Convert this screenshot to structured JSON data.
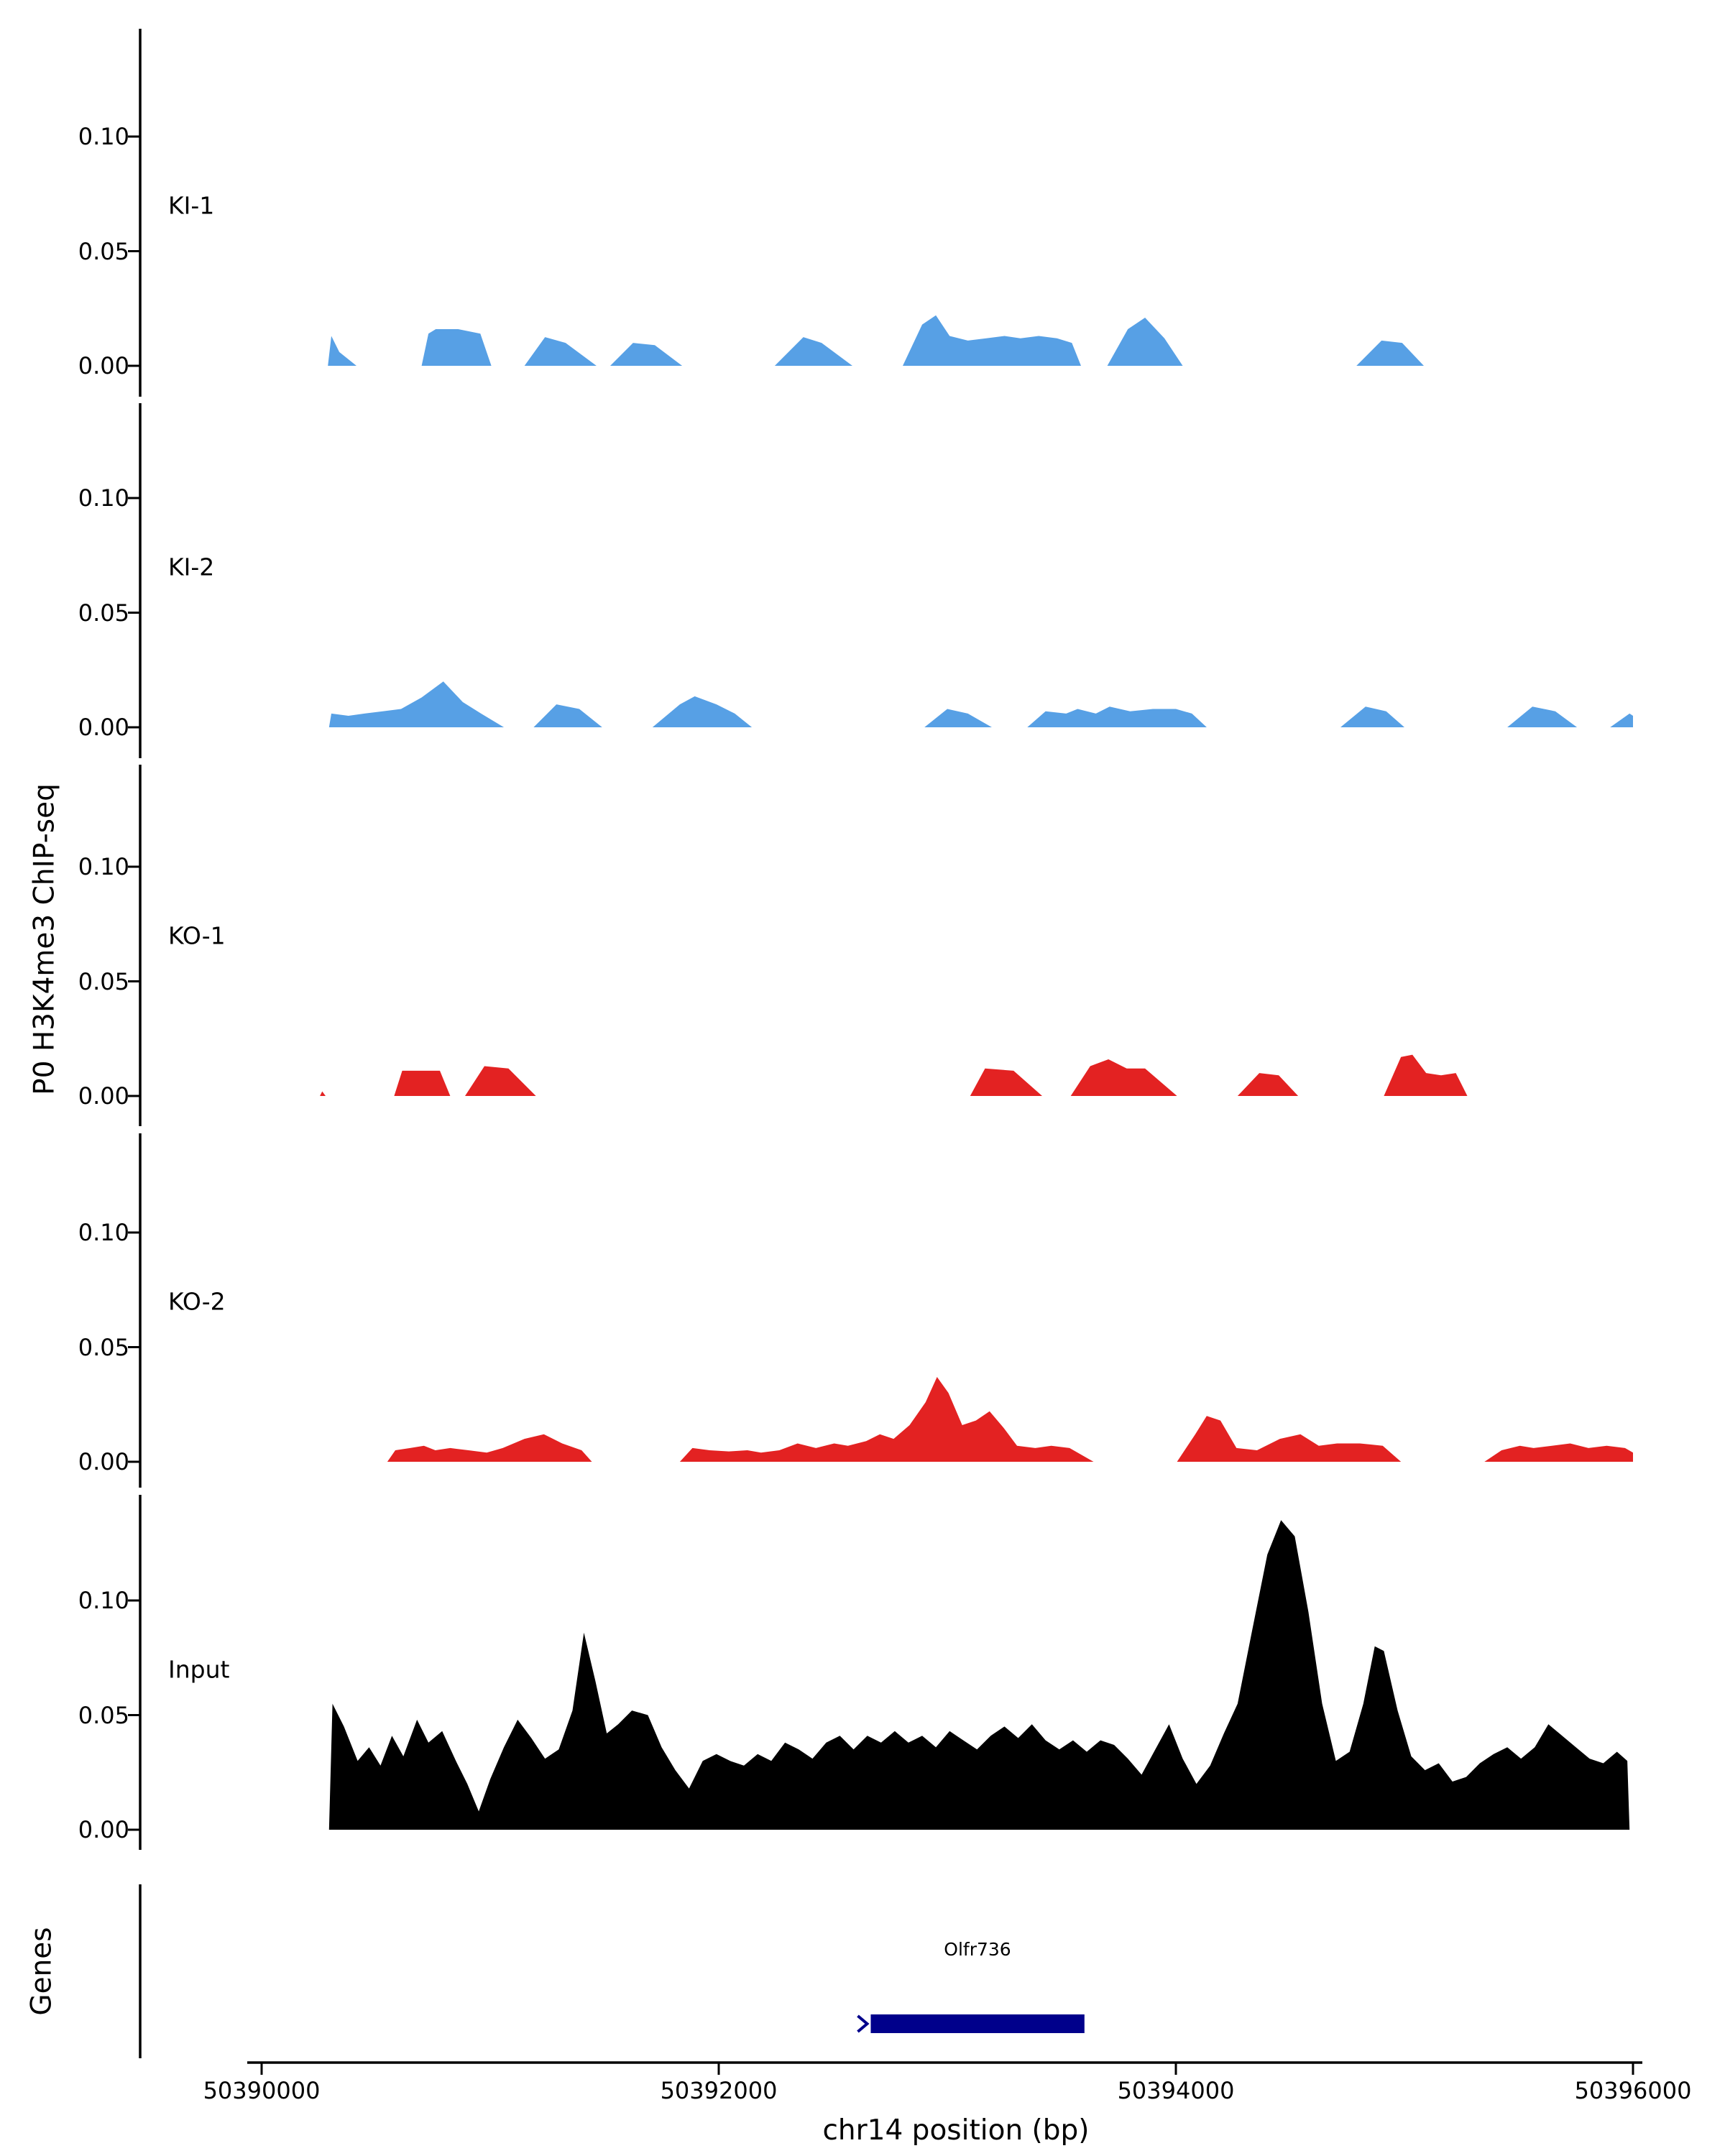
{
  "chart_data": {
    "type": "area",
    "title": "",
    "x_axis": {
      "label": "chr14 position (bp)",
      "range": [
        50390000,
        50396000
      ],
      "ticks": [
        50390000,
        50392000,
        50394000,
        50396000
      ],
      "tick_labels": [
        "50390000",
        "50392000",
        "50394000",
        "50396000"
      ]
    },
    "y_axis": {
      "label": "P0 H3K4me3 ChIP-seq",
      "range": [
        0,
        0.15
      ],
      "tick_values": [
        0,
        0.05,
        0.1
      ],
      "tick_labels": [
        "0.00",
        "0.05",
        "0.10"
      ]
    },
    "colors": {
      "ki": "#57A0E5",
      "ko": "#E32222",
      "input": "#000000",
      "gene": "#00008B",
      "axis": "#000000"
    },
    "tracks": [
      {
        "name": "KI-1",
        "color": "#57A0E5",
        "points": [
          [
            50390290,
            0
          ],
          [
            50390305,
            0.013
          ],
          [
            50390340,
            0.006
          ],
          [
            50390415,
            0
          ],
          [
            50390700,
            0
          ],
          [
            50390730,
            0.014
          ],
          [
            50390762,
            0.016
          ],
          [
            50390860,
            0.016
          ],
          [
            50390957,
            0.014
          ],
          [
            50391005,
            0
          ],
          [
            50391150,
            0
          ],
          [
            50391240,
            0.0125
          ],
          [
            50391330,
            0.01
          ],
          [
            50391465,
            0
          ],
          [
            50391525,
            0
          ],
          [
            50391625,
            0.01
          ],
          [
            50391720,
            0.009
          ],
          [
            50391840,
            0
          ],
          [
            50392245,
            0
          ],
          [
            50392370,
            0.0125
          ],
          [
            50392450,
            0.01
          ],
          [
            50392585,
            0
          ],
          [
            50392805,
            0
          ],
          [
            50392890,
            0.018
          ],
          [
            50392950,
            0.022
          ],
          [
            50393010,
            0.013
          ],
          [
            50393090,
            0.011
          ],
          [
            50393170,
            0.012
          ],
          [
            50393250,
            0.013
          ],
          [
            50393320,
            0.012
          ],
          [
            50393400,
            0.013
          ],
          [
            50393480,
            0.012
          ],
          [
            50393545,
            0.01
          ],
          [
            50393585,
            0
          ],
          [
            50393700,
            0
          ],
          [
            50393790,
            0.016
          ],
          [
            50393865,
            0.021
          ],
          [
            50393950,
            0.012
          ],
          [
            50394030,
            0
          ],
          [
            50394790,
            0
          ],
          [
            50394900,
            0.011
          ],
          [
            50394990,
            0.01
          ],
          [
            50395085,
            0
          ]
        ]
      },
      {
        "name": "KI-2",
        "color": "#57A0E5",
        "points": [
          [
            50390295,
            0
          ],
          [
            50390305,
            0.006
          ],
          [
            50390380,
            0.005
          ],
          [
            50390450,
            0.006
          ],
          [
            50390530,
            0.007
          ],
          [
            50390610,
            0.008
          ],
          [
            50390700,
            0.013
          ],
          [
            50390795,
            0.02
          ],
          [
            50390880,
            0.011
          ],
          [
            50390960,
            0.006
          ],
          [
            50391060,
            0
          ],
          [
            50391190,
            0
          ],
          [
            50391290,
            0.01
          ],
          [
            50391390,
            0.008
          ],
          [
            50391490,
            0
          ],
          [
            50391710,
            0
          ],
          [
            50391830,
            0.01
          ],
          [
            50391895,
            0.0135
          ],
          [
            50391990,
            0.01
          ],
          [
            50392070,
            0.006
          ],
          [
            50392145,
            0
          ],
          [
            50392900,
            0
          ],
          [
            50393000,
            0.008
          ],
          [
            50393090,
            0.006
          ],
          [
            50393195,
            0
          ],
          [
            50393350,
            0
          ],
          [
            50393430,
            0.007
          ],
          [
            50393520,
            0.006
          ],
          [
            50393570,
            0.008
          ],
          [
            50393650,
            0.006
          ],
          [
            50393710,
            0.009
          ],
          [
            50393800,
            0.007
          ],
          [
            50393900,
            0.008
          ],
          [
            50394000,
            0.008
          ],
          [
            50394070,
            0.006
          ],
          [
            50394135,
            0
          ],
          [
            50394720,
            0
          ],
          [
            50394830,
            0.009
          ],
          [
            50394920,
            0.007
          ],
          [
            50395000,
            0
          ],
          [
            50395450,
            0
          ],
          [
            50395560,
            0.009
          ],
          [
            50395660,
            0.007
          ],
          [
            50395755,
            0
          ],
          [
            50395900,
            0
          ],
          [
            50395985,
            0.006
          ],
          [
            50396000,
            0.005
          ]
        ]
      },
      {
        "name": "KO-1",
        "color": "#E32222",
        "points": [
          [
            50390255,
            0
          ],
          [
            50390265,
            0.002
          ],
          [
            50390280,
            0
          ],
          [
            50390580,
            0
          ],
          [
            50390615,
            0.011
          ],
          [
            50390780,
            0.011
          ],
          [
            50390825,
            0
          ],
          [
            50390890,
            0
          ],
          [
            50390975,
            0.013
          ],
          [
            50391080,
            0.012
          ],
          [
            50391200,
            0
          ],
          [
            50393100,
            0
          ],
          [
            50393165,
            0.012
          ],
          [
            50393290,
            0.011
          ],
          [
            50393415,
            0
          ],
          [
            50393540,
            0
          ],
          [
            50393625,
            0.013
          ],
          [
            50393705,
            0.016
          ],
          [
            50393785,
            0.012
          ],
          [
            50393865,
            0.012
          ],
          [
            50394005,
            0
          ],
          [
            50394270,
            0
          ],
          [
            50394365,
            0.01
          ],
          [
            50394450,
            0.009
          ],
          [
            50394535,
            0
          ],
          [
            50394910,
            0
          ],
          [
            50394985,
            0.017
          ],
          [
            50395035,
            0.018
          ],
          [
            50395095,
            0.01
          ],
          [
            50395160,
            0.009
          ],
          [
            50395225,
            0.01
          ],
          [
            50395275,
            0
          ]
        ]
      },
      {
        "name": "KO-2",
        "color": "#E32222",
        "points": [
          [
            50390550,
            0
          ],
          [
            50390585,
            0.005
          ],
          [
            50390650,
            0.006
          ],
          [
            50390710,
            0.007
          ],
          [
            50390760,
            0.005
          ],
          [
            50390825,
            0.006
          ],
          [
            50390905,
            0.005
          ],
          [
            50390985,
            0.004
          ],
          [
            50391055,
            0.006
          ],
          [
            50391150,
            0.01
          ],
          [
            50391235,
            0.012
          ],
          [
            50391315,
            0.008
          ],
          [
            50391400,
            0.005
          ],
          [
            50391445,
            0
          ],
          [
            50391830,
            0
          ],
          [
            50391885,
            0.006
          ],
          [
            50391960,
            0.005
          ],
          [
            50392045,
            0.0045
          ],
          [
            50392125,
            0.005
          ],
          [
            50392185,
            0.004
          ],
          [
            50392265,
            0.005
          ],
          [
            50392345,
            0.008
          ],
          [
            50392425,
            0.006
          ],
          [
            50392505,
            0.008
          ],
          [
            50392565,
            0.007
          ],
          [
            50392645,
            0.009
          ],
          [
            50392705,
            0.012
          ],
          [
            50392765,
            0.01
          ],
          [
            50392835,
            0.016
          ],
          [
            50392905,
            0.026
          ],
          [
            50392955,
            0.037
          ],
          [
            50393005,
            0.03
          ],
          [
            50393065,
            0.016
          ],
          [
            50393125,
            0.018
          ],
          [
            50393185,
            0.022
          ],
          [
            50393245,
            0.015
          ],
          [
            50393305,
            0.007
          ],
          [
            50393385,
            0.006
          ],
          [
            50393455,
            0.007
          ],
          [
            50393535,
            0.006
          ],
          [
            50393640,
            0
          ],
          [
            50394005,
            0
          ],
          [
            50394085,
            0.012
          ],
          [
            50394135,
            0.02
          ],
          [
            50394195,
            0.018
          ],
          [
            50394265,
            0.006
          ],
          [
            50394355,
            0.005
          ],
          [
            50394455,
            0.01
          ],
          [
            50394545,
            0.012
          ],
          [
            50394625,
            0.007
          ],
          [
            50394705,
            0.008
          ],
          [
            50394805,
            0.008
          ],
          [
            50394905,
            0.007
          ],
          [
            50394985,
            0
          ],
          [
            50395350,
            0
          ],
          [
            50395425,
            0.005
          ],
          [
            50395505,
            0.007
          ],
          [
            50395565,
            0.006
          ],
          [
            50395645,
            0.007
          ],
          [
            50395725,
            0.008
          ],
          [
            50395805,
            0.006
          ],
          [
            50395885,
            0.007
          ],
          [
            50395965,
            0.006
          ],
          [
            50396000,
            0.004
          ]
        ]
      },
      {
        "name": "Input",
        "color": "#000000",
        "points": [
          [
            50390295,
            0
          ],
          [
            50390310,
            0.055
          ],
          [
            50390360,
            0.045
          ],
          [
            50390420,
            0.03
          ],
          [
            50390470,
            0.036
          ],
          [
            50390520,
            0.028
          ],
          [
            50390570,
            0.041
          ],
          [
            50390620,
            0.032
          ],
          [
            50390680,
            0.048
          ],
          [
            50390730,
            0.038
          ],
          [
            50390790,
            0.043
          ],
          [
            50390850,
            0.03
          ],
          [
            50390900,
            0.02
          ],
          [
            50390950,
            0.008
          ],
          [
            50391000,
            0.022
          ],
          [
            50391060,
            0.036
          ],
          [
            50391120,
            0.048
          ],
          [
            50391180,
            0.04
          ],
          [
            50391240,
            0.031
          ],
          [
            50391300,
            0.035
          ],
          [
            50391360,
            0.052
          ],
          [
            50391410,
            0.086
          ],
          [
            50391460,
            0.065
          ],
          [
            50391510,
            0.042
          ],
          [
            50391560,
            0.046
          ],
          [
            50391620,
            0.052
          ],
          [
            50391690,
            0.05
          ],
          [
            50391750,
            0.036
          ],
          [
            50391810,
            0.026
          ],
          [
            50391870,
            0.018
          ],
          [
            50391930,
            0.03
          ],
          [
            50391990,
            0.033
          ],
          [
            50392050,
            0.03
          ],
          [
            50392110,
            0.028
          ],
          [
            50392170,
            0.033
          ],
          [
            50392230,
            0.03
          ],
          [
            50392290,
            0.038
          ],
          [
            50392350,
            0.035
          ],
          [
            50392410,
            0.031
          ],
          [
            50392470,
            0.038
          ],
          [
            50392530,
            0.041
          ],
          [
            50392590,
            0.035
          ],
          [
            50392650,
            0.041
          ],
          [
            50392710,
            0.038
          ],
          [
            50392770,
            0.043
          ],
          [
            50392830,
            0.038
          ],
          [
            50392890,
            0.041
          ],
          [
            50392950,
            0.036
          ],
          [
            50393010,
            0.043
          ],
          [
            50393070,
            0.039
          ],
          [
            50393130,
            0.035
          ],
          [
            50393190,
            0.041
          ],
          [
            50393250,
            0.045
          ],
          [
            50393310,
            0.04
          ],
          [
            50393370,
            0.046
          ],
          [
            50393430,
            0.039
          ],
          [
            50393490,
            0.035
          ],
          [
            50393550,
            0.039
          ],
          [
            50393610,
            0.034
          ],
          [
            50393670,
            0.039
          ],
          [
            50393730,
            0.037
          ],
          [
            50393790,
            0.031
          ],
          [
            50393850,
            0.024
          ],
          [
            50393910,
            0.035
          ],
          [
            50393970,
            0.046
          ],
          [
            50394030,
            0.031
          ],
          [
            50394090,
            0.02
          ],
          [
            50394150,
            0.028
          ],
          [
            50394210,
            0.042
          ],
          [
            50394270,
            0.055
          ],
          [
            50394330,
            0.085
          ],
          [
            50394400,
            0.12
          ],
          [
            50394460,
            0.135
          ],
          [
            50394520,
            0.128
          ],
          [
            50394580,
            0.095
          ],
          [
            50394640,
            0.055
          ],
          [
            50394700,
            0.03
          ],
          [
            50394760,
            0.034
          ],
          [
            50394820,
            0.055
          ],
          [
            50394870,
            0.08
          ],
          [
            50394910,
            0.078
          ],
          [
            50394970,
            0.052
          ],
          [
            50395030,
            0.032
          ],
          [
            50395090,
            0.026
          ],
          [
            50395150,
            0.029
          ],
          [
            50395210,
            0.021
          ],
          [
            50395270,
            0.023
          ],
          [
            50395330,
            0.029
          ],
          [
            50395390,
            0.033
          ],
          [
            50395450,
            0.036
          ],
          [
            50395510,
            0.031
          ],
          [
            50395570,
            0.036
          ],
          [
            50395630,
            0.046
          ],
          [
            50395690,
            0.041
          ],
          [
            50395750,
            0.036
          ],
          [
            50395810,
            0.031
          ],
          [
            50395870,
            0.029
          ],
          [
            50395930,
            0.034
          ],
          [
            50395975,
            0.03
          ],
          [
            50395985,
            0
          ]
        ]
      }
    ],
    "genes_track": {
      "label": "Genes",
      "genes": [
        {
          "name": "Olfr736",
          "start": 50392665,
          "end": 50393600,
          "strand": "+",
          "color": "#00008B"
        }
      ]
    }
  }
}
